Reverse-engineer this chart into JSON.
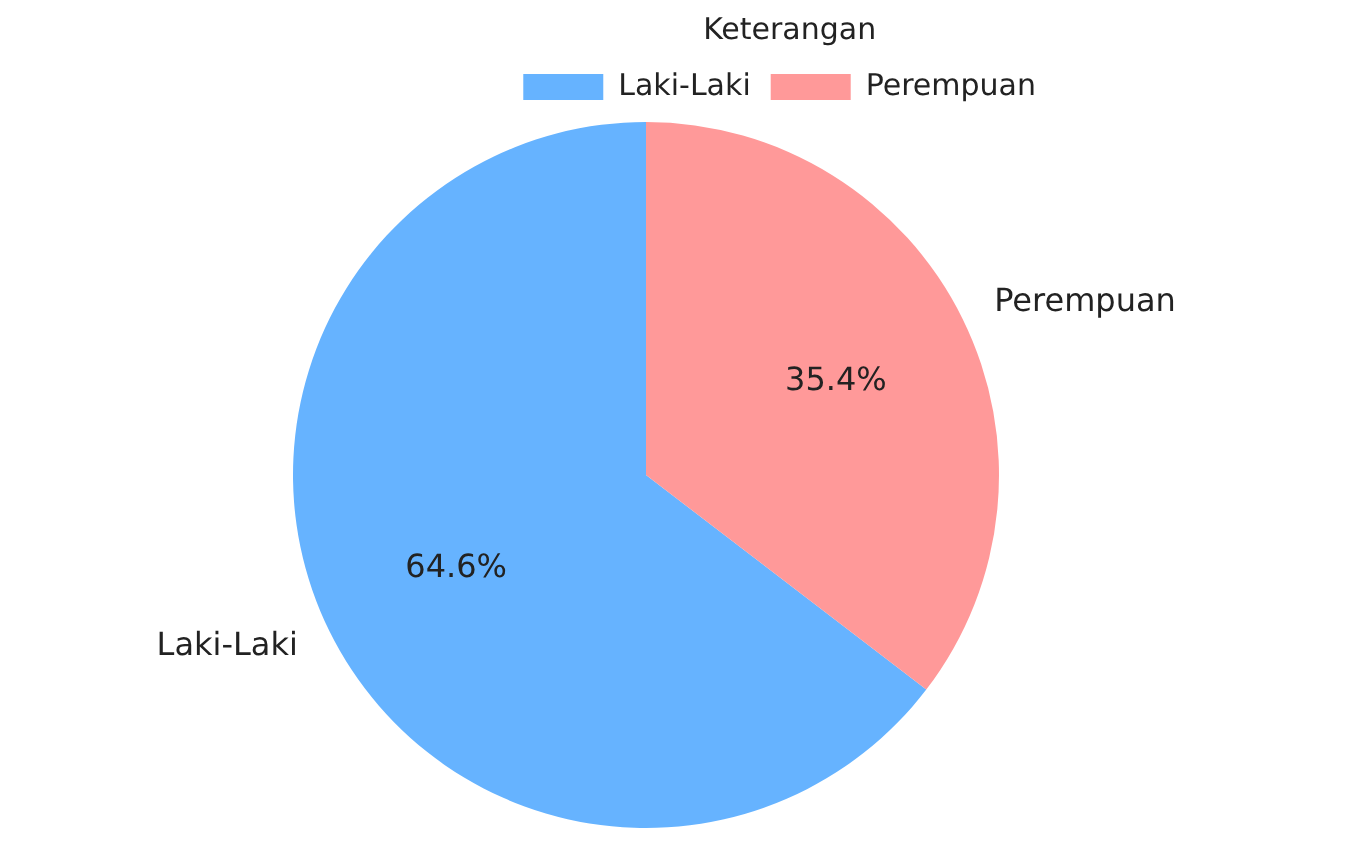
{
  "chart_data": {
    "type": "pie",
    "legend_title": "Keterangan",
    "legend": "top right",
    "categories": [
      "Laki-Laki",
      "Perempuan"
    ],
    "values": [
      64.6,
      35.4
    ],
    "colors": [
      "#66b3ff",
      "#ff9999"
    ],
    "value_labels": [
      "64.6%",
      "35.4%"
    ]
  }
}
